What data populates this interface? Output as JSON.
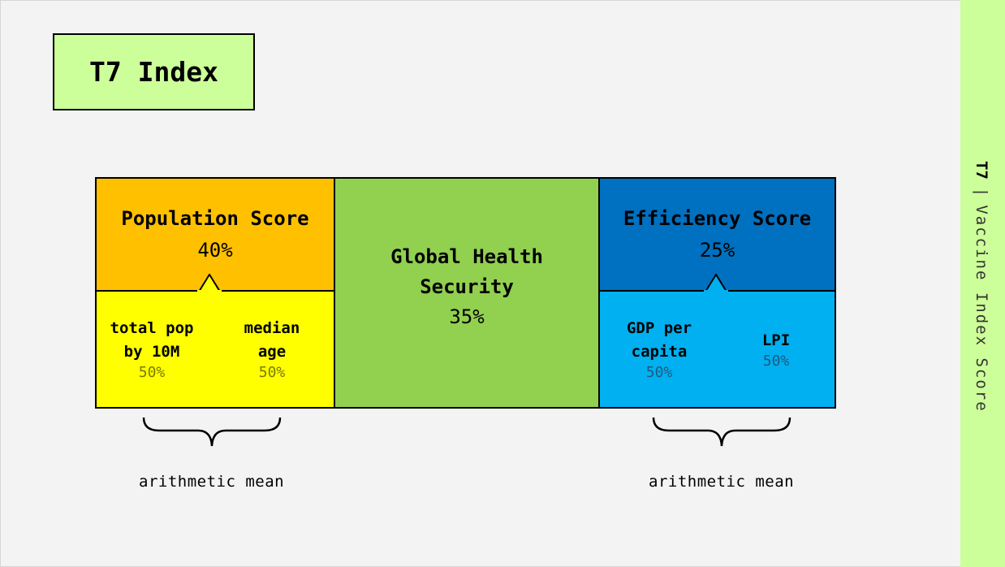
{
  "title": "T7 Index",
  "sidebar": {
    "code": "T7",
    "separator": "|",
    "name": "Vaccine Index Score"
  },
  "population": {
    "title": "Population Score",
    "weight": "40%",
    "components": [
      {
        "line1": "total pop",
        "line2": "by 10M",
        "weight": "50%"
      },
      {
        "line1": "median",
        "line2": "age",
        "weight": "50%"
      }
    ],
    "aggregation": "arithmetic mean"
  },
  "global_health": {
    "line1": "Global Health",
    "line2": "Security",
    "weight": "35%"
  },
  "efficiency": {
    "title": "Efficiency Score",
    "weight": "25%",
    "components": [
      {
        "line1": "GDP per",
        "line2": "capita",
        "weight": "50%"
      },
      {
        "line1": "LPI",
        "line2": "",
        "weight": "50%"
      }
    ],
    "aggregation": "arithmetic mean"
  },
  "colors": {
    "population_score": "#ffc000",
    "population_components": "#ffff00",
    "global_health_security": "#92d050",
    "efficiency_score": "#0070c0",
    "efficiency_components": "#00b0f0",
    "title_and_sidebar": "#ccff99",
    "background": "#f3f3f3"
  }
}
